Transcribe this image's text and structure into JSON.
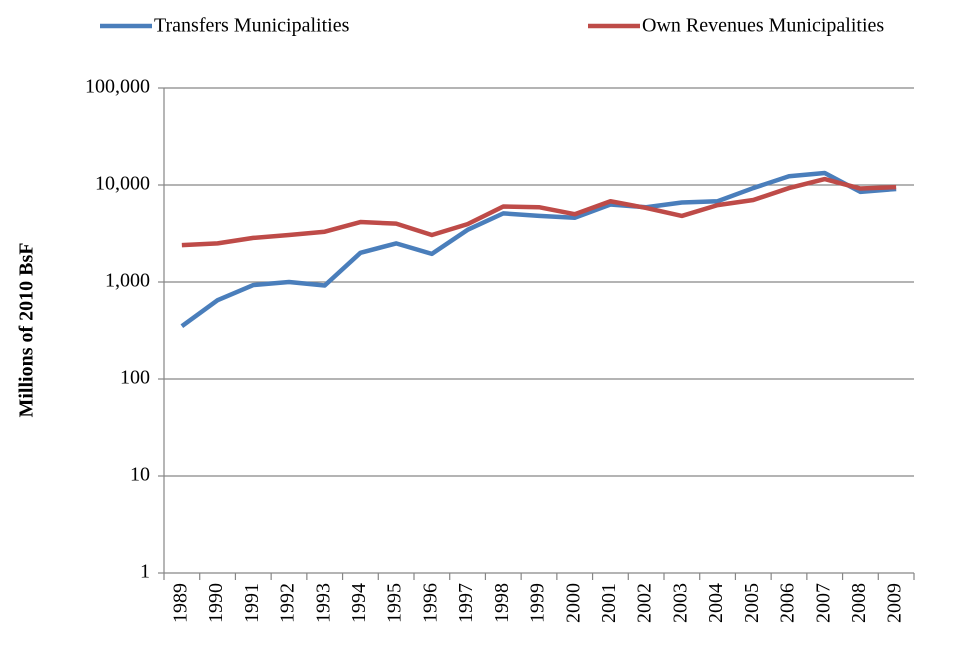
{
  "chart_data": {
    "type": "line",
    "y_label": "Millions of 2010 BsF",
    "categories": [
      "1989",
      "1990",
      "1991",
      "1992",
      "1993",
      "1994",
      "1995",
      "1996",
      "1997",
      "1998",
      "1999",
      "2000",
      "2001",
      "2002",
      "2003",
      "2004",
      "2005",
      "2006",
      "2007",
      "2008",
      "2009"
    ],
    "series": [
      {
        "name": "Transfers Municipalities",
        "color": "#4a7ebb",
        "values": [
          350,
          650,
          930,
          1000,
          920,
          2000,
          2500,
          1950,
          3450,
          5100,
          4800,
          4600,
          6300,
          5900,
          6600,
          6800,
          9300,
          12300,
          13300,
          8500,
          9100
        ]
      },
      {
        "name": "Own Revenues Municipalities",
        "color": "#be4b48",
        "values": [
          2400,
          2500,
          2850,
          3050,
          3300,
          4150,
          4000,
          3050,
          3950,
          6000,
          5900,
          5000,
          6800,
          5800,
          4800,
          6200,
          7000,
          9300,
          11500,
          9200,
          9500
        ]
      }
    ],
    "ylim": [
      1,
      100000
    ],
    "yticks": [
      1,
      10,
      100,
      {
        "value": 1000,
        "label": "1,000"
      },
      {
        "value": 10000,
        "label": "10,000"
      },
      {
        "value": 100000,
        "label": "100,000"
      }
    ],
    "log_scale": true,
    "grid": true,
    "legend": "top"
  }
}
